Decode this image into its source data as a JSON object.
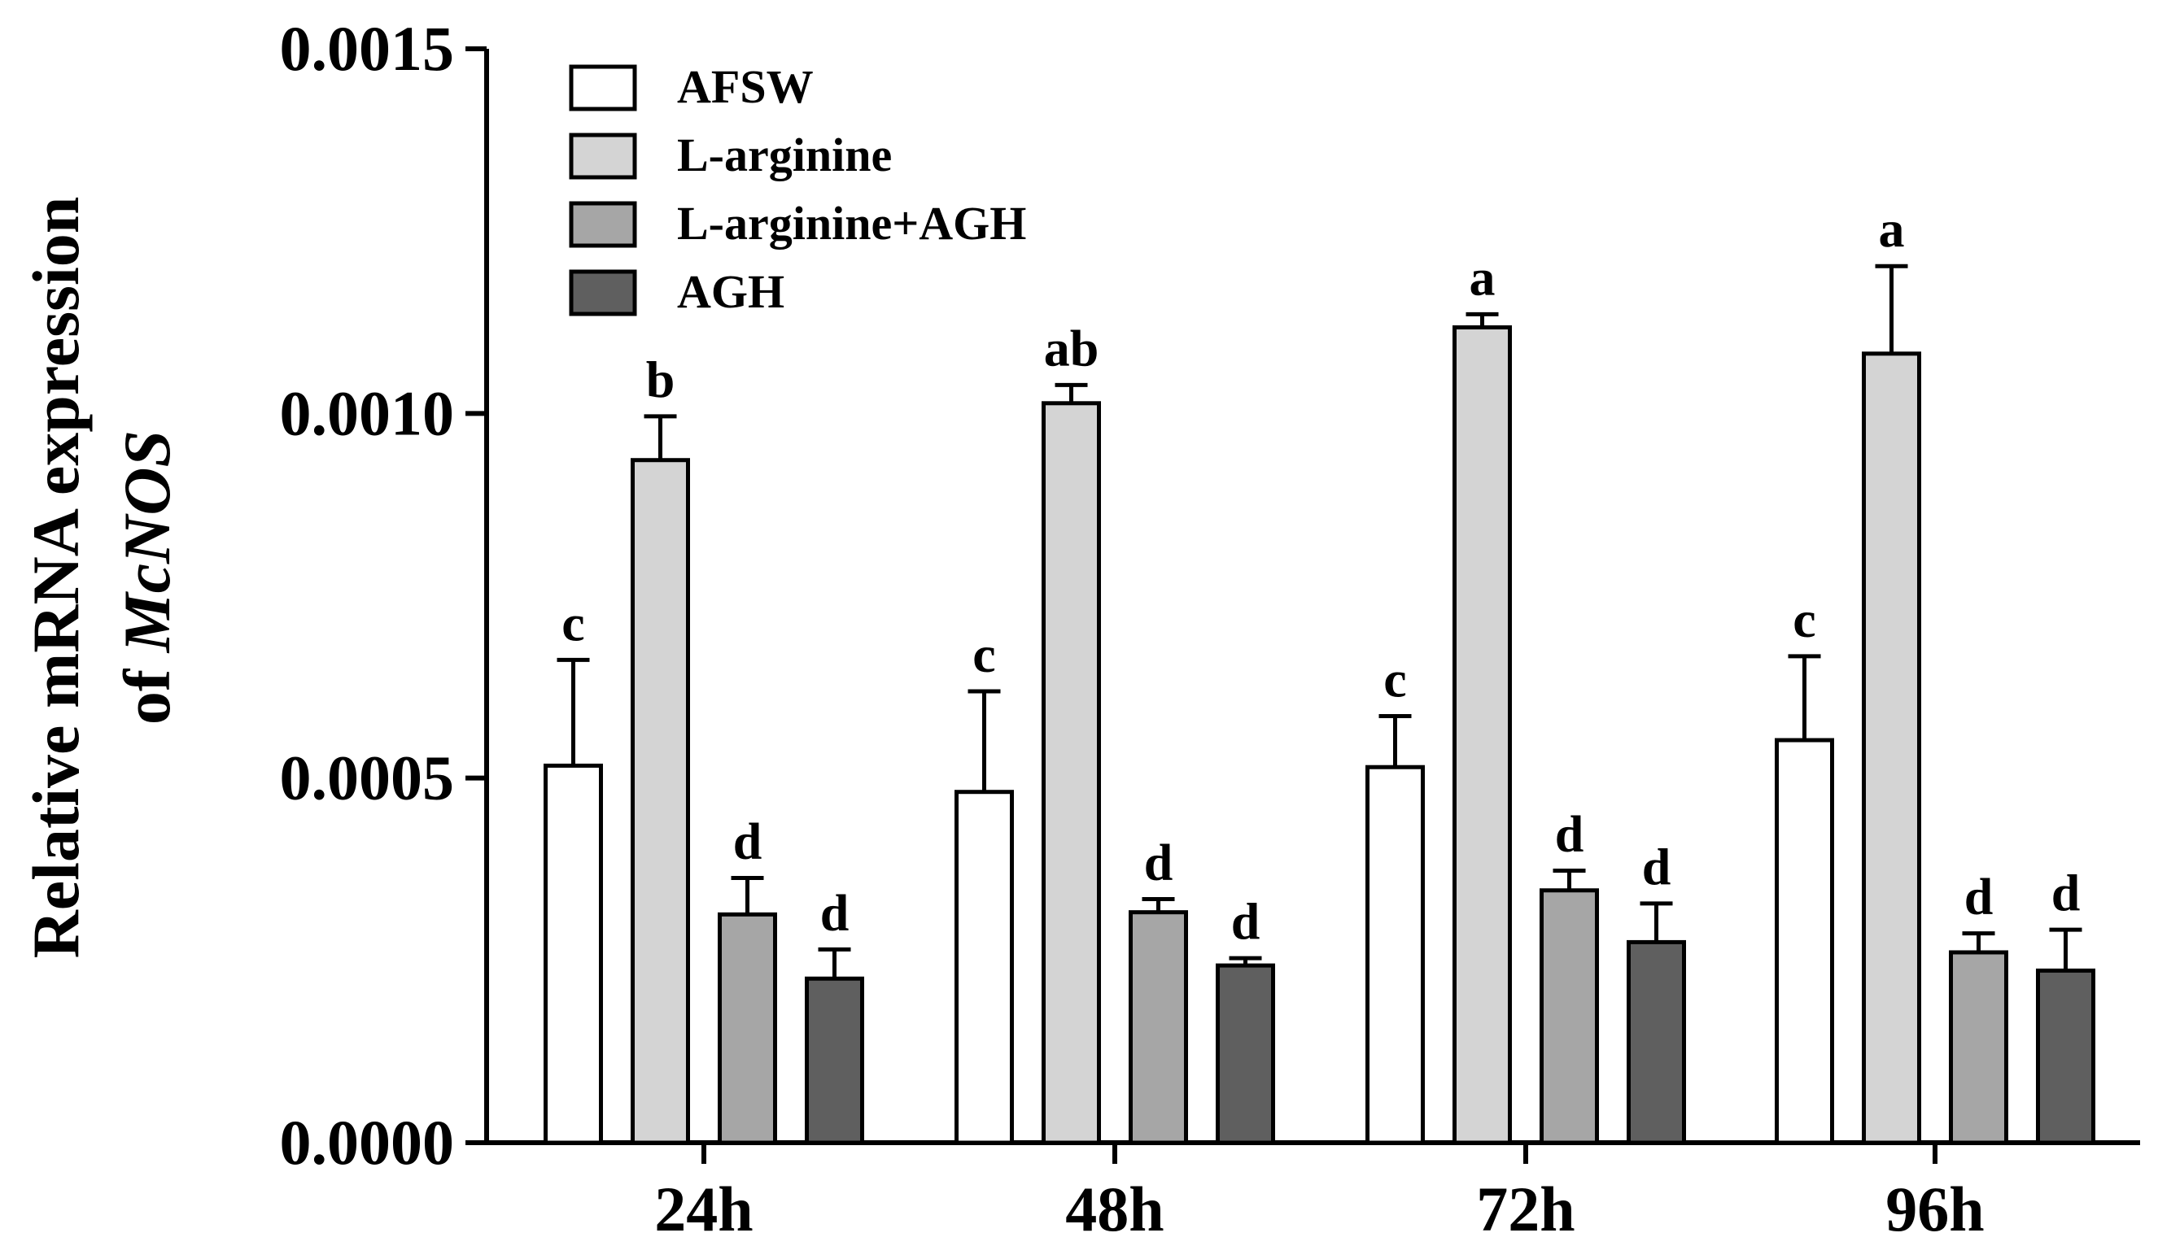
{
  "chart_data": {
    "type": "bar",
    "ylabel_line1": "Relative mRNA expression",
    "ylabel_line2_prefix": "of ",
    "ylabel_line2_gene": "McNOS",
    "xlabel": "",
    "ylim": [
      0,
      0.0015
    ],
    "yticks": [
      "0.0000",
      "0.0005",
      "0.0010",
      "0.0015"
    ],
    "ytick_values": [
      0,
      0.0005,
      0.001,
      0.0015
    ],
    "categories": [
      "24h",
      "48h",
      "72h",
      "96h"
    ],
    "grid": false,
    "legend_position": "top-left",
    "series": [
      {
        "name": "AFSW",
        "color": "#ffffff",
        "values": [
          0.000517,
          0.000481,
          0.000515,
          0.000552
        ],
        "errors": [
          0.000145,
          0.000138,
          7e-05,
          0.000115
        ],
        "labels": [
          "c",
          "c",
          "c",
          "c"
        ]
      },
      {
        "name": "L-arginine",
        "color": "#d4d4d4",
        "values": [
          0.000936,
          0.001014,
          0.001118,
          0.001082
        ],
        "errors": [
          6e-05,
          2.5e-05,
          1.8e-05,
          0.00012
        ],
        "labels": [
          "b",
          "ab",
          "a",
          "a"
        ]
      },
      {
        "name": "L-arginine+AGH",
        "color": "#a6a6a6",
        "values": [
          0.000313,
          0.000316,
          0.000346,
          0.000261
        ],
        "errors": [
          5e-05,
          1.8e-05,
          2.7e-05,
          2.6e-05
        ],
        "labels": [
          "d",
          "d",
          "d",
          "d"
        ]
      },
      {
        "name": "AGH",
        "color": "#5f5f5f",
        "values": [
          0.000225,
          0.000243,
          0.000275,
          0.000236
        ],
        "errors": [
          4e-05,
          1e-05,
          5.3e-05,
          5.6e-05
        ],
        "labels": [
          "d",
          "d",
          "d",
          "d"
        ]
      }
    ]
  }
}
